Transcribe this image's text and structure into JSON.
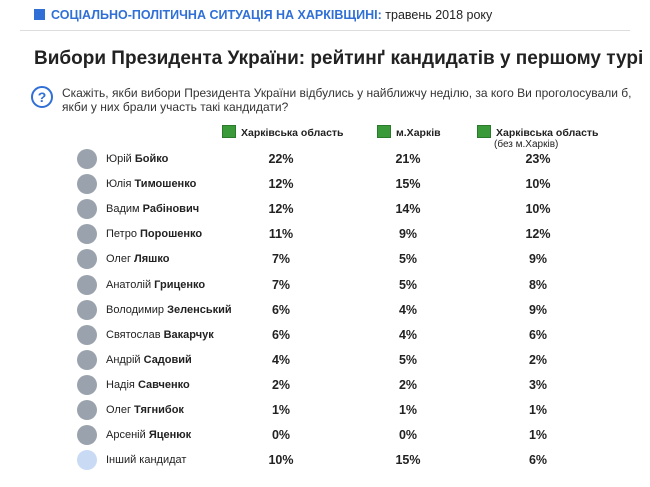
{
  "header": {
    "topic": "СОЦІАЛЬНО-ПОЛІТИЧНА СИТУАЦІЯ НА ХАРКІВЩИНІ:",
    "date": "травень 2018 року"
  },
  "title": "Вибори Президента України: рейтинґ кандидатів у першому турі",
  "question": "Скажіть, якби вибори Президента України відбулись у найближчу неділю, за кого Ви проголосували б, якби у них брали участь такі кандидати?",
  "table": {
    "columns": [
      {
        "label": "Харківська область"
      },
      {
        "label": "м.Харків"
      },
      {
        "label": "Харківська область",
        "note": "(без м.Харків)"
      }
    ],
    "rows": [
      {
        "first": "Юрій",
        "last": "Бойко",
        "values": [
          "22%",
          "21%",
          "23%"
        ]
      },
      {
        "first": "Юлія",
        "last": "Тимошенко",
        "values": [
          "12%",
          "15%",
          "10%"
        ]
      },
      {
        "first": "Вадим",
        "last": "Рабінович",
        "values": [
          "12%",
          "14%",
          "10%"
        ]
      },
      {
        "first": "Петро",
        "last": "Порошенко",
        "values": [
          "11%",
          "9%",
          "12%"
        ]
      },
      {
        "first": "Олег",
        "last": "Ляшко",
        "values": [
          "7%",
          "5%",
          "9%"
        ]
      },
      {
        "first": "Анатолій",
        "last": "Гриценко",
        "values": [
          "7%",
          "5%",
          "8%"
        ]
      },
      {
        "first": "Володимир",
        "last": "Зеленський",
        "values": [
          "6%",
          "4%",
          "9%"
        ]
      },
      {
        "first": "Святослав",
        "last": "Вакарчук",
        "values": [
          "6%",
          "4%",
          "6%"
        ]
      },
      {
        "first": "Андрій",
        "last": "Садовий",
        "values": [
          "4%",
          "5%",
          "2%"
        ]
      },
      {
        "first": "Надія",
        "last": "Савченко",
        "values": [
          "2%",
          "2%",
          "3%"
        ]
      },
      {
        "first": "Олег",
        "last": "Тягнибок",
        "values": [
          "1%",
          "1%",
          "1%"
        ]
      },
      {
        "first": "Арсеній",
        "last": "Яценюк",
        "values": [
          "0%",
          "0%",
          "1%"
        ]
      },
      {
        "first": "Інший кандидат",
        "values": [
          "10%",
          "15%",
          "6%"
        ]
      }
    ]
  }
}
